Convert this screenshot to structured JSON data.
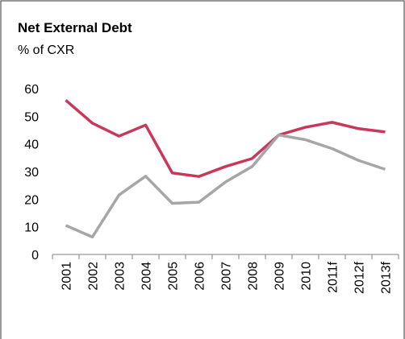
{
  "chart_data": {
    "type": "line",
    "title": "Net External Debt",
    "subtitle": "% of CXR",
    "categories": [
      "2001",
      "2002",
      "2003",
      "2004",
      "2005",
      "2006",
      "2007",
      "2008",
      "2009",
      "2010",
      "2011f",
      "2012f",
      "2013f"
    ],
    "series": [
      {
        "color": "#c8385a",
        "values": [
          55.8,
          47.5,
          42.8,
          46.8,
          29.5,
          28.2,
          31.8,
          34.7,
          43.2,
          46.0,
          47.8,
          45.5,
          44.3
        ]
      },
      {
        "color": "#a6a6a6",
        "values": [
          10.5,
          6.3,
          21.5,
          28.3,
          18.5,
          18.9,
          26.2,
          31.8,
          43.2,
          41.5,
          38.3,
          34.0,
          30.8
        ]
      }
    ],
    "ylim": [
      0,
      60
    ],
    "yticks": [
      0,
      10,
      20,
      30,
      40,
      50,
      60
    ],
    "grid": false
  }
}
